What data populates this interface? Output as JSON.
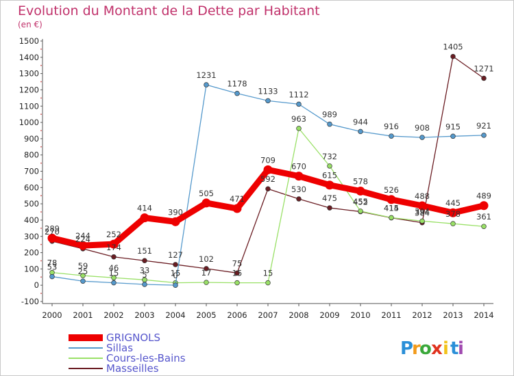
{
  "chart_data": {
    "type": "line",
    "title": "Evolution du Montant de la Dette par Habitant",
    "unit_label": "(en €)",
    "x": [
      "2000",
      "2001",
      "2002",
      "2003",
      "2004",
      "2005",
      "2006",
      "2007",
      "2008",
      "2009",
      "2010",
      "2011",
      "2012",
      "2013",
      "2014"
    ],
    "ylim": [
      -100,
      1500
    ],
    "yticks": [
      -100,
      0,
      100,
      200,
      300,
      400,
      500,
      600,
      700,
      800,
      900,
      1000,
      1100,
      1200,
      1300,
      1400,
      1500
    ],
    "grid": false,
    "legend_position": "bottom-left",
    "series": [
      {
        "name": "Masseilles",
        "color": "#6a1c22",
        "values": [
          270,
          224,
          174,
          151,
          127,
          102,
          75,
          592,
          530,
          475,
          452,
          414,
          384,
          1405,
          1271
        ]
      },
      {
        "name": "Cours-les-Bains",
        "color": "#99e066",
        "values": [
          78,
          59,
          46,
          33,
          15,
          17,
          15,
          15,
          963,
          732,
          455,
          415,
          394,
          378,
          361
        ]
      },
      {
        "name": "Sillas",
        "color": "#5599cc",
        "values": [
          53,
          25,
          15,
          5,
          0,
          1231,
          1178,
          1133,
          1112,
          989,
          944,
          916,
          908,
          915,
          921
        ]
      },
      {
        "name": "GRIGNOLS",
        "color": "#ee0000",
        "values": [
          289,
          244,
          252,
          414,
          390,
          505,
          471,
          709,
          670,
          615,
          578,
          526,
          488,
          445,
          489
        ]
      }
    ],
    "legend_order": [
      "GRIGNOLS",
      "Sillas",
      "Cours-les-Bains",
      "Masseilles"
    ]
  },
  "brand": {
    "letters": [
      "P",
      "r",
      "o",
      "x",
      "i",
      "t",
      "i"
    ],
    "colors": [
      "#2a8fd8",
      "#f29a1a",
      "#3aa83a",
      "#e0321e",
      "#f2c21a",
      "#2a8fd8",
      "#a04ab0"
    ]
  }
}
